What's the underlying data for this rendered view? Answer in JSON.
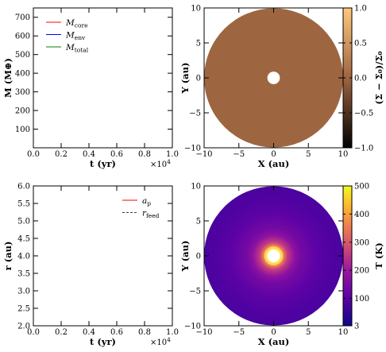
{
  "chart_data": [
    {
      "type": "line",
      "panel": "mass-evolution",
      "title": "",
      "xlabel": "t (yr)",
      "ylabel": "M (M⊕)",
      "xlim": [
        0,
        10000
      ],
      "ylim": [
        0,
        750
      ],
      "x_ticks": [
        "0.0",
        "0.2",
        "0.4",
        "0.6",
        "0.8",
        "1.0"
      ],
      "x_multiplier": "×10",
      "x_multiplier_exp": "4",
      "y_ticks": [
        "100",
        "200",
        "300",
        "400",
        "500",
        "600",
        "700"
      ],
      "legend_placement": "top-left",
      "series": [
        {
          "name": "M",
          "sub": "core",
          "color": "#ff0000",
          "style": "solid",
          "x": [],
          "y": []
        },
        {
          "name": "M",
          "sub": "env",
          "color": "#0000ff",
          "style": "solid",
          "x": [],
          "y": []
        },
        {
          "name": "M",
          "sub": "total",
          "color": "#008000",
          "style": "solid",
          "x": [],
          "y": []
        }
      ]
    },
    {
      "type": "heatmap",
      "panel": "surface-density-perturbation",
      "title": "",
      "xlabel": "X (au)",
      "ylabel": "Y (au)",
      "colorbar_label": "(Σ − Σ₀)/Σ₀",
      "xlim": [
        -10,
        10
      ],
      "ylim": [
        -10,
        10
      ],
      "x_ticks": [
        "−10",
        "−5",
        "0",
        "5",
        "10"
      ],
      "y_ticks": [
        "−10",
        "−5",
        "0",
        "5",
        "10"
      ],
      "colorbar_range": [
        -1.0,
        1.0
      ],
      "colorbar_ticks": [
        "−1.0",
        "−0.5",
        "0.0",
        "0.5",
        "1.0"
      ],
      "colormap": "copper",
      "disk_inner_radius_au": 0.9,
      "disk_outer_radius_au": 10,
      "disk_value": 0.0,
      "disk_color": "#9e6640"
    },
    {
      "type": "line",
      "panel": "planet-radius",
      "title": "",
      "xlabel": "t (yr)",
      "ylabel": "r (au)",
      "xlim": [
        0,
        10000
      ],
      "ylim": [
        2.0,
        6.0
      ],
      "x_ticks": [
        "0.0",
        "0.2",
        "0.4",
        "0.6",
        "0.8",
        "1.0"
      ],
      "x_multiplier": "×10",
      "x_multiplier_exp": "4",
      "y_ticks": [
        "2.0",
        "2.5",
        "3.0",
        "3.5",
        "4.0",
        "4.5",
        "5.0",
        "5.5",
        "6.0"
      ],
      "legend_placement": "top-right",
      "series": [
        {
          "name": "a",
          "sub": "p",
          "color": "#ff0000",
          "style": "solid",
          "x": [],
          "y": []
        },
        {
          "name": "r",
          "sub": "feed",
          "color": "#000000",
          "style": "dashed",
          "x": [],
          "y": []
        }
      ]
    },
    {
      "type": "heatmap",
      "panel": "temperature",
      "title": "",
      "xlabel": "X (au)",
      "ylabel": "Y (au)",
      "colorbar_label": "T (K)",
      "xlim": [
        -10,
        10
      ],
      "ylim": [
        -10,
        10
      ],
      "x_ticks": [
        "−10",
        "−5",
        "0",
        "5",
        "10"
      ],
      "y_ticks": [
        "−10",
        "−5",
        "0",
        "5",
        "10"
      ],
      "colorbar_range": [
        3,
        500
      ],
      "colorbar_ticks": [
        "3",
        "100",
        "200",
        "300",
        "400",
        "500"
      ],
      "colorbar_tick_values": [
        3,
        100,
        200,
        300,
        400,
        500
      ],
      "colormap": "plasma",
      "disk_inner_radius_au": 0.9,
      "disk_outer_radius_au": 10,
      "temperature_profile_K": {
        "r_au": [
          0.9,
          1.2,
          1.6,
          2.0,
          3.0,
          4.0,
          6.0,
          8.0,
          10.0
        ],
        "T": [
          500,
          420,
          330,
          260,
          180,
          140,
          105,
          90,
          80
        ]
      }
    }
  ]
}
